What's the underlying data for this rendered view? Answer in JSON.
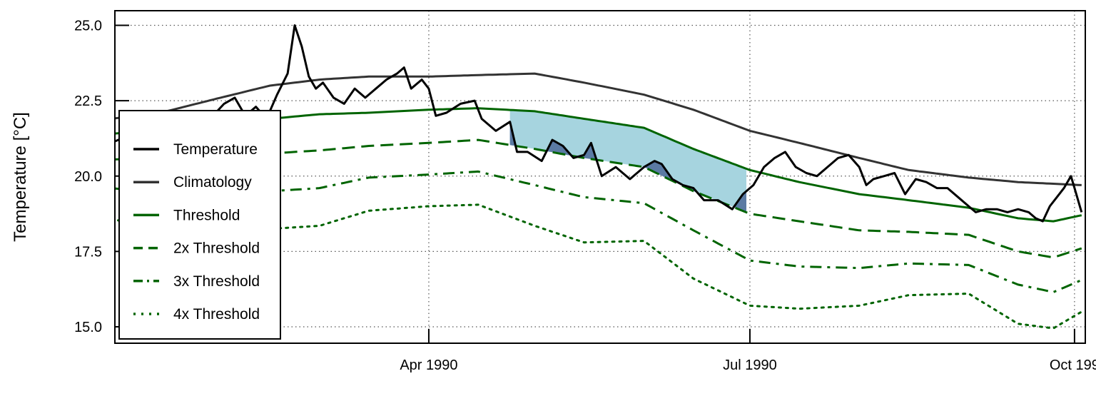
{
  "chart_data": {
    "type": "line",
    "title": "",
    "xlabel": "",
    "ylabel": "Temperature [°C]",
    "ylim": [
      14.5,
      25.5
    ],
    "xlim": [
      "1990-01-01",
      "1990-10-03"
    ],
    "grid": true,
    "legend_position": "left",
    "y_ticks": [
      15.0,
      17.5,
      20.0,
      22.5,
      25.0
    ],
    "y_tick_labels": [
      "15.0",
      "17.5",
      "20.0",
      "22.5",
      "25.0"
    ],
    "x_ticks": [
      "1990-04-01",
      "1990-07-01",
      "1990-10-01"
    ],
    "x_tick_labels": [
      "Apr 1990",
      "Jul 1990",
      "Oct 199"
    ],
    "series": [
      {
        "name": "Temperature",
        "style": "solid",
        "color": "#000000",
        "points": [
          [
            "1990-01-01",
            21.1
          ],
          [
            "1990-01-05",
            21.3
          ],
          [
            "1990-01-10",
            21.0
          ],
          [
            "1990-01-15",
            21.4
          ],
          [
            "1990-01-20",
            21.2
          ],
          [
            "1990-01-25",
            21.6
          ],
          [
            "1990-01-29",
            21.9
          ],
          [
            "1990-02-02",
            22.4
          ],
          [
            "1990-02-05",
            22.6
          ],
          [
            "1990-02-08",
            22.0
          ],
          [
            "1990-02-11",
            22.3
          ],
          [
            "1990-02-14",
            21.9
          ],
          [
            "1990-02-17",
            22.7
          ],
          [
            "1990-02-20",
            23.4
          ],
          [
            "1990-02-22",
            25.0
          ],
          [
            "1990-02-24",
            24.3
          ],
          [
            "1990-02-26",
            23.3
          ],
          [
            "1990-02-28",
            22.9
          ],
          [
            "1990-03-02",
            23.1
          ],
          [
            "1990-03-05",
            22.6
          ],
          [
            "1990-03-08",
            22.4
          ],
          [
            "1990-03-11",
            22.9
          ],
          [
            "1990-03-14",
            22.6
          ],
          [
            "1990-03-17",
            22.9
          ],
          [
            "1990-03-20",
            23.2
          ],
          [
            "1990-03-23",
            23.4
          ],
          [
            "1990-03-25",
            23.6
          ],
          [
            "1990-03-27",
            22.9
          ],
          [
            "1990-03-30",
            23.2
          ],
          [
            "1990-04-01",
            22.9
          ],
          [
            "1990-04-03",
            22.0
          ],
          [
            "1990-04-06",
            22.1
          ],
          [
            "1990-04-10",
            22.4
          ],
          [
            "1990-04-14",
            22.5
          ],
          [
            "1990-04-16",
            21.9
          ],
          [
            "1990-04-20",
            21.5
          ],
          [
            "1990-04-24",
            21.8
          ],
          [
            "1990-04-26",
            20.8
          ],
          [
            "1990-04-29",
            20.8
          ],
          [
            "1990-05-03",
            20.5
          ],
          [
            "1990-05-06",
            21.2
          ],
          [
            "1990-05-09",
            21.0
          ],
          [
            "1990-05-12",
            20.6
          ],
          [
            "1990-05-15",
            20.7
          ],
          [
            "1990-05-17",
            21.1
          ],
          [
            "1990-05-20",
            20.0
          ],
          [
            "1990-05-24",
            20.3
          ],
          [
            "1990-05-28",
            19.9
          ],
          [
            "1990-06-01",
            20.3
          ],
          [
            "1990-06-04",
            20.5
          ],
          [
            "1990-06-06",
            20.4
          ],
          [
            "1990-06-09",
            19.9
          ],
          [
            "1990-06-12",
            19.7
          ],
          [
            "1990-06-15",
            19.6
          ],
          [
            "1990-06-18",
            19.2
          ],
          [
            "1990-06-22",
            19.2
          ],
          [
            "1990-06-26",
            18.9
          ],
          [
            "1990-06-29",
            19.4
          ],
          [
            "1990-07-02",
            19.7
          ],
          [
            "1990-07-05",
            20.3
          ],
          [
            "1990-07-08",
            20.6
          ],
          [
            "1990-07-11",
            20.8
          ],
          [
            "1990-07-14",
            20.3
          ],
          [
            "1990-07-17",
            20.1
          ],
          [
            "1990-07-20",
            20.0
          ],
          [
            "1990-07-23",
            20.3
          ],
          [
            "1990-07-26",
            20.6
          ],
          [
            "1990-07-29",
            20.7
          ],
          [
            "1990-08-01",
            20.3
          ],
          [
            "1990-08-03",
            19.7
          ],
          [
            "1990-08-05",
            19.9
          ],
          [
            "1990-08-08",
            20.0
          ],
          [
            "1990-08-11",
            20.1
          ],
          [
            "1990-08-14",
            19.4
          ],
          [
            "1990-08-17",
            19.9
          ],
          [
            "1990-08-20",
            19.8
          ],
          [
            "1990-08-23",
            19.6
          ],
          [
            "1990-08-26",
            19.6
          ],
          [
            "1990-08-29",
            19.3
          ],
          [
            "1990-09-01",
            19.0
          ],
          [
            "1990-09-03",
            18.8
          ],
          [
            "1990-09-06",
            18.9
          ],
          [
            "1990-09-09",
            18.9
          ],
          [
            "1990-09-12",
            18.8
          ],
          [
            "1990-09-15",
            18.9
          ],
          [
            "1990-09-18",
            18.8
          ],
          [
            "1990-09-20",
            18.6
          ],
          [
            "1990-09-22",
            18.5
          ],
          [
            "1990-09-24",
            19.0
          ],
          [
            "1990-09-26",
            19.3
          ],
          [
            "1990-09-28",
            19.6
          ],
          [
            "1990-09-30",
            20.0
          ],
          [
            "1990-10-01",
            19.6
          ],
          [
            "1990-10-03",
            18.8
          ]
        ]
      },
      {
        "name": "Climatology",
        "style": "solid",
        "color": "#333333",
        "points": [
          [
            "1990-01-01",
            21.9
          ],
          [
            "1990-01-15",
            22.1
          ],
          [
            "1990-02-01",
            22.6
          ],
          [
            "1990-02-15",
            23.0
          ],
          [
            "1990-03-01",
            23.2
          ],
          [
            "1990-03-15",
            23.3
          ],
          [
            "1990-04-01",
            23.3
          ],
          [
            "1990-04-15",
            23.35
          ],
          [
            "1990-05-01",
            23.4
          ],
          [
            "1990-05-15",
            23.1
          ],
          [
            "1990-06-01",
            22.7
          ],
          [
            "1990-06-15",
            22.2
          ],
          [
            "1990-07-01",
            21.5
          ],
          [
            "1990-07-15",
            21.1
          ],
          [
            "1990-08-01",
            20.6
          ],
          [
            "1990-08-15",
            20.2
          ],
          [
            "1990-09-01",
            19.95
          ],
          [
            "1990-09-15",
            19.8
          ],
          [
            "1990-10-03",
            19.7
          ]
        ]
      },
      {
        "name": "Threshold",
        "style": "solid",
        "color": "#006400",
        "points": [
          [
            "1990-01-01",
            21.4
          ],
          [
            "1990-01-15",
            21.55
          ],
          [
            "1990-02-01",
            21.75
          ],
          [
            "1990-02-15",
            21.9
          ],
          [
            "1990-03-01",
            22.05
          ],
          [
            "1990-03-15",
            22.1
          ],
          [
            "1990-04-01",
            22.2
          ],
          [
            "1990-04-15",
            22.25
          ],
          [
            "1990-05-01",
            22.15
          ],
          [
            "1990-05-15",
            21.9
          ],
          [
            "1990-06-01",
            21.6
          ],
          [
            "1990-06-15",
            20.9
          ],
          [
            "1990-07-01",
            20.2
          ],
          [
            "1990-07-15",
            19.8
          ],
          [
            "1990-08-01",
            19.4
          ],
          [
            "1990-08-15",
            19.2
          ],
          [
            "1990-09-01",
            18.95
          ],
          [
            "1990-09-15",
            18.6
          ],
          [
            "1990-09-25",
            18.5
          ],
          [
            "1990-10-03",
            18.7
          ]
        ]
      },
      {
        "name": "2x Threshold",
        "style": "dashed",
        "color": "#006400",
        "points": [
          [
            "1990-01-01",
            20.55
          ],
          [
            "1990-01-15",
            20.6
          ],
          [
            "1990-02-01",
            20.65
          ],
          [
            "1990-02-15",
            20.75
          ],
          [
            "1990-03-01",
            20.85
          ],
          [
            "1990-03-15",
            21.0
          ],
          [
            "1990-04-01",
            21.1
          ],
          [
            "1990-04-15",
            21.2
          ],
          [
            "1990-05-01",
            20.9
          ],
          [
            "1990-05-15",
            20.6
          ],
          [
            "1990-06-01",
            20.3
          ],
          [
            "1990-06-15",
            19.5
          ],
          [
            "1990-07-01",
            18.75
          ],
          [
            "1990-07-15",
            18.5
          ],
          [
            "1990-08-01",
            18.2
          ],
          [
            "1990-08-15",
            18.15
          ],
          [
            "1990-09-01",
            18.05
          ],
          [
            "1990-09-15",
            17.5
          ],
          [
            "1990-09-25",
            17.3
          ],
          [
            "1990-10-03",
            17.6
          ]
        ]
      },
      {
        "name": "3x Threshold",
        "style": "dashdot",
        "color": "#006400",
        "points": [
          [
            "1990-01-01",
            19.6
          ],
          [
            "1990-01-15",
            19.45
          ],
          [
            "1990-02-01",
            19.3
          ],
          [
            "1990-02-15",
            19.5
          ],
          [
            "1990-03-01",
            19.6
          ],
          [
            "1990-03-15",
            19.95
          ],
          [
            "1990-04-01",
            20.05
          ],
          [
            "1990-04-15",
            20.15
          ],
          [
            "1990-05-01",
            19.7
          ],
          [
            "1990-05-15",
            19.3
          ],
          [
            "1990-06-01",
            19.1
          ],
          [
            "1990-06-15",
            18.2
          ],
          [
            "1990-07-01",
            17.2
          ],
          [
            "1990-07-15",
            17.0
          ],
          [
            "1990-08-01",
            16.95
          ],
          [
            "1990-08-15",
            17.1
          ],
          [
            "1990-09-01",
            17.05
          ],
          [
            "1990-09-15",
            16.4
          ],
          [
            "1990-09-25",
            16.15
          ],
          [
            "1990-10-03",
            16.55
          ]
        ]
      },
      {
        "name": "4x Threshold",
        "style": "dotted",
        "color": "#006400",
        "points": [
          [
            "1990-01-01",
            18.6
          ],
          [
            "1990-01-15",
            18.1
          ],
          [
            "1990-02-01",
            17.9
          ],
          [
            "1990-02-15",
            18.25
          ],
          [
            "1990-03-01",
            18.35
          ],
          [
            "1990-03-15",
            18.85
          ],
          [
            "1990-04-01",
            19.0
          ],
          [
            "1990-04-15",
            19.05
          ],
          [
            "1990-05-01",
            18.35
          ],
          [
            "1990-05-15",
            17.8
          ],
          [
            "1990-06-01",
            17.85
          ],
          [
            "1990-06-15",
            16.6
          ],
          [
            "1990-07-01",
            15.7
          ],
          [
            "1990-07-15",
            15.6
          ],
          [
            "1990-08-01",
            15.7
          ],
          [
            "1990-08-15",
            16.05
          ],
          [
            "1990-09-01",
            16.1
          ],
          [
            "1990-09-15",
            15.1
          ],
          [
            "1990-09-25",
            14.95
          ],
          [
            "1990-10-03",
            15.5
          ]
        ]
      }
    ],
    "fill_colors": {
      "above_threshold": "#a6d4df",
      "above_2x": "#5b7aa3"
    }
  }
}
